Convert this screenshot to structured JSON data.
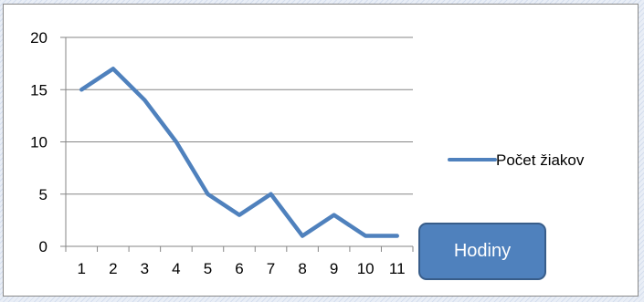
{
  "chart_data": {
    "type": "line",
    "categories": [
      "1",
      "2",
      "3",
      "4",
      "5",
      "6",
      "7",
      "8",
      "9",
      "10",
      "11"
    ],
    "series": [
      {
        "name": "Počet žiakov",
        "values": [
          15,
          17,
          14,
          10,
          5,
          3,
          5,
          1,
          3,
          1,
          1
        ],
        "color": "#4f81bd"
      }
    ],
    "y_ticks": [
      "0",
      "5",
      "10",
      "15",
      "20"
    ],
    "ylim": [
      0,
      20
    ],
    "grid": "horizontal",
    "legend": "right",
    "title": "",
    "xlabel": "",
    "ylabel": ""
  },
  "annotation": {
    "label": "Hodiny",
    "fill_color": "#4f81bd",
    "border_color": "#385d8a"
  }
}
